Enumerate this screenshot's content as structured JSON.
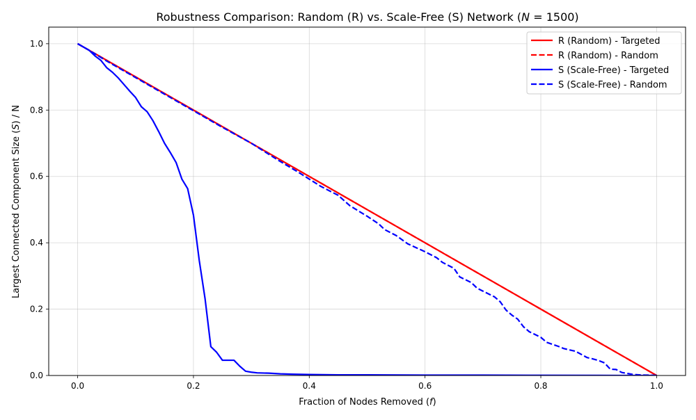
{
  "chart_data": {
    "type": "line",
    "title": "Robustness Comparison: Random (R) vs. Scale-Free (S) Network (N = 1500)",
    "title_parts": [
      "Robustness Comparison: Random (R) vs. Scale-Free (S) Network (",
      "N",
      " = 1500)"
    ],
    "xlabel_parts": [
      "Fraction of Nodes Removed (",
      "f",
      ")"
    ],
    "ylabel_parts": [
      "Largest Connected Component Size (",
      "S",
      ") / N"
    ],
    "xlim": [
      -0.05,
      1.05
    ],
    "ylim": [
      0,
      1.05
    ],
    "x_ticks": [
      0.0,
      0.2,
      0.4,
      0.6,
      0.8,
      1.0
    ],
    "x_tick_labels": [
      "0.0",
      "0.2",
      "0.4",
      "0.6",
      "0.8",
      "1.0"
    ],
    "y_ticks": [
      0.0,
      0.2,
      0.4,
      0.6,
      0.8,
      1.0
    ],
    "y_tick_labels": [
      "0.0",
      "0.2",
      "0.4",
      "0.6",
      "0.8",
      "1.0"
    ],
    "grid": true,
    "legend_position": "top-right",
    "series": [
      {
        "name": "R (Random) - Targeted",
        "color": "#ff0000",
        "style": "solid",
        "x": [
          0.0,
          1.0
        ],
        "y": [
          1.0,
          0.0
        ]
      },
      {
        "name": "R (Random) - Random",
        "color": "#ff0000",
        "style": "dashed",
        "x": [
          0.0,
          1.0
        ],
        "y": [
          1.0,
          0.0
        ]
      },
      {
        "name": "S (Scale-Free) - Targeted",
        "color": "#0000ff",
        "style": "solid",
        "x": [
          0.0,
          0.01,
          0.02,
          0.03,
          0.04,
          0.05,
          0.06,
          0.07,
          0.08,
          0.09,
          0.1,
          0.11,
          0.12,
          0.13,
          0.14,
          0.15,
          0.16,
          0.17,
          0.18,
          0.19,
          0.2,
          0.21,
          0.22,
          0.23,
          0.24,
          0.25,
          0.26,
          0.27,
          0.28,
          0.29,
          0.3,
          0.31,
          0.33,
          0.35,
          0.37,
          0.4,
          0.45,
          0.5,
          0.6,
          0.7,
          0.8,
          0.9,
          1.0
        ],
        "y": [
          1.0,
          0.99,
          0.98,
          0.963,
          0.95,
          0.928,
          0.914,
          0.897,
          0.877,
          0.857,
          0.838,
          0.81,
          0.795,
          0.768,
          0.735,
          0.7,
          0.672,
          0.642,
          0.592,
          0.563,
          0.483,
          0.347,
          0.232,
          0.087,
          0.07,
          0.046,
          0.046,
          0.046,
          0.028,
          0.013,
          0.01,
          0.008,
          0.007,
          0.005,
          0.004,
          0.003,
          0.002,
          0.002,
          0.001,
          0.001,
          0.0005,
          0.0002,
          0.0
        ]
      },
      {
        "name": "S (Scale-Free) - Random",
        "color": "#0000ff",
        "style": "dashed",
        "x": [
          0.0,
          0.02,
          0.05,
          0.1,
          0.15,
          0.2,
          0.25,
          0.3,
          0.35,
          0.38,
          0.4,
          0.42,
          0.45,
          0.47,
          0.5,
          0.52,
          0.53,
          0.55,
          0.57,
          0.6,
          0.62,
          0.63,
          0.65,
          0.66,
          0.68,
          0.69,
          0.72,
          0.73,
          0.74,
          0.75,
          0.76,
          0.77,
          0.78,
          0.8,
          0.81,
          0.83,
          0.84,
          0.86,
          0.88,
          0.89,
          0.9,
          0.91,
          0.92,
          0.93,
          0.94,
          0.95,
          0.96,
          0.97,
          0.98,
          0.99,
          1.0
        ],
        "y": [
          1.0,
          0.98,
          0.948,
          0.898,
          0.848,
          0.798,
          0.748,
          0.7,
          0.645,
          0.614,
          0.592,
          0.57,
          0.543,
          0.512,
          0.48,
          0.457,
          0.44,
          0.422,
          0.397,
          0.373,
          0.355,
          0.341,
          0.323,
          0.297,
          0.28,
          0.263,
          0.237,
          0.222,
          0.197,
          0.182,
          0.17,
          0.147,
          0.132,
          0.115,
          0.1,
          0.088,
          0.081,
          0.073,
          0.054,
          0.05,
          0.045,
          0.038,
          0.019,
          0.018,
          0.009,
          0.006,
          0.003,
          0.002,
          0.001,
          0.001,
          0.0
        ]
      }
    ]
  }
}
